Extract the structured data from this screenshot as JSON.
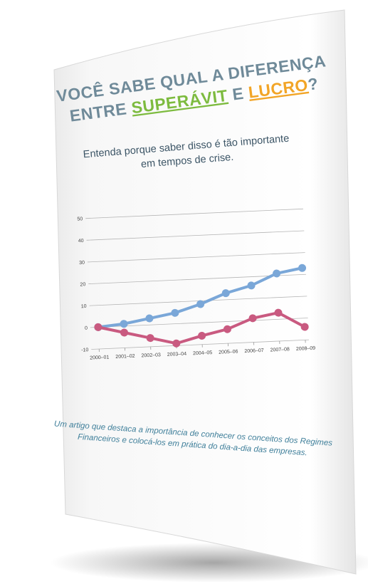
{
  "cover": {
    "title_line1": "VOCÊ SABE QUAL A DIFERENÇA",
    "title_line2": [
      "ENTRE ",
      "SUPERÁVIT",
      " E ",
      "LUCRO",
      "?"
    ],
    "subtitle": [
      "Entenda porque saber disso é tão importante",
      "em tempos de crise."
    ],
    "description": [
      "Um artigo que destaca a importância de conhecer os conceitos dos Regimes",
      "Financeiros e colocá-los em prática do dia-a-dia das empresas."
    ]
  },
  "chart_data": {
    "type": "line",
    "categories": [
      "2000–01",
      "2001–02",
      "2002–03",
      "2003–04",
      "2004–05",
      "2005–06",
      "2006–07",
      "2007–08",
      "2008–09"
    ],
    "series": [
      {
        "color": "#7aa7d8",
        "values": [
          0,
          1,
          3,
          5,
          8.5,
          13,
          16,
          21,
          23
        ]
      },
      {
        "color": "#c95a80",
        "values": [
          0,
          -3,
          -6,
          -9,
          -6,
          -3.5,
          1,
          3,
          -4
        ]
      }
    ],
    "ylim": [
      -10,
      50
    ],
    "yticks": [
      -10,
      0,
      10,
      20,
      30,
      40,
      50
    ],
    "grid": true
  }
}
